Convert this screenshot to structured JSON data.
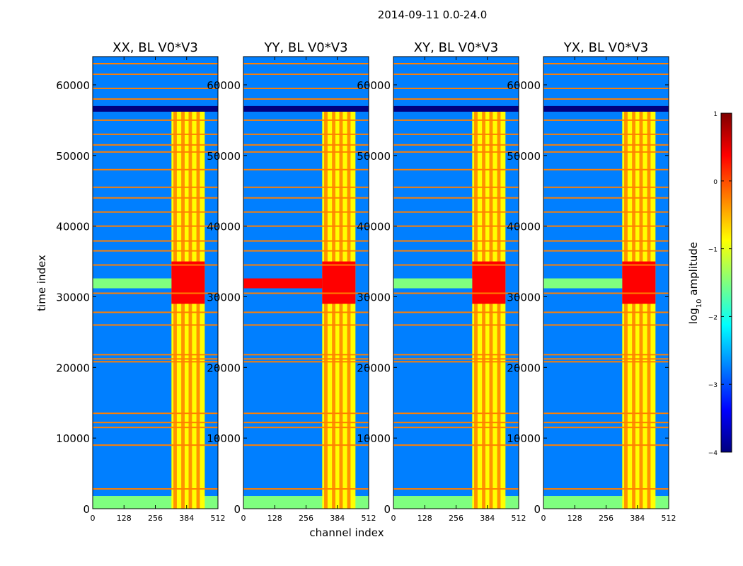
{
  "figure": {
    "suptitle": "2014-09-11 0.0-24.0"
  },
  "colors": {
    "colormap": [
      "#00007f",
      "#0000ff",
      "#007fff",
      "#00ffff",
      "#7fff7f",
      "#ffff00",
      "#ff7f00",
      "#ff0000",
      "#7f0000"
    ],
    "flag_row": "#ff7f00",
    "frame": "#000000"
  },
  "chart_data": {
    "type": "heatmap",
    "panels": [
      {
        "title": "XX, BL V0*V3"
      },
      {
        "title": "YY, BL V0*V3"
      },
      {
        "title": "XY, BL V0*V3"
      },
      {
        "title": "YX, BL V0*V3"
      }
    ],
    "xlabel": "channel index",
    "ylabel": "time index",
    "xlim": [
      0,
      512
    ],
    "ylim": [
      0,
      64000
    ],
    "xticks": [
      "0",
      "128",
      "256",
      "384",
      "512"
    ],
    "yticks": [
      "0",
      "10000",
      "20000",
      "30000",
      "40000",
      "50000",
      "60000"
    ],
    "colorbar": {
      "label_base": "log",
      "label_sub": "10",
      "label_rest": " amplitude",
      "range": [
        -4,
        1
      ],
      "ticks": [
        "1",
        "0",
        "−1",
        "−2",
        "−3",
        "−4"
      ]
    },
    "features": {
      "background_log_amp": -2.6,
      "rfi_band_channels": [
        322,
        458
      ],
      "rfi_subbands_channels": [
        [
          330,
          344
        ],
        [
          362,
          376
        ],
        [
          392,
          406
        ],
        [
          424,
          438
        ]
      ],
      "flagged_time_rows": [
        2800,
        9000,
        11500,
        12200,
        13500,
        20800,
        21200,
        21800,
        26000,
        27800,
        30500,
        34500,
        36500,
        37900,
        40000,
        42000,
        44000,
        45500,
        48000,
        50500,
        51500,
        53000,
        55000,
        58000,
        59500,
        61500,
        63000
      ],
      "flagged_block_times": [
        56200,
        57000
      ],
      "low_time_strip": [
        0,
        1800
      ],
      "burst_time_range": [
        29000,
        35000
      ]
    }
  }
}
